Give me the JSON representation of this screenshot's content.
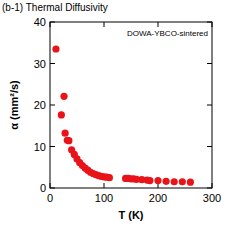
{
  "chart_data": {
    "type": "scatter",
    "title": "(b-1) Thermal Diffusivity",
    "annotation": "DOWA-YBCO-sintered",
    "xlabel": "T (K)",
    "ylabel": "α (mm²/s)",
    "x": [
      11,
      21,
      26,
      28,
      32,
      35,
      40,
      45,
      50,
      55,
      60,
      65,
      70,
      75,
      80,
      85,
      90,
      95,
      100,
      105,
      110,
      140,
      145,
      150,
      155,
      160,
      170,
      180,
      185,
      200,
      215,
      230,
      245,
      260
    ],
    "values": [
      33.5,
      17.6,
      22.1,
      13.2,
      11.5,
      11.4,
      9.2,
      8.1,
      7.0,
      6.1,
      5.4,
      4.8,
      4.3,
      3.8,
      3.5,
      3.2,
      3.0,
      2.8,
      2.7,
      2.6,
      2.5,
      2.3,
      2.3,
      2.2,
      2.2,
      2.1,
      2.0,
      1.9,
      1.8,
      1.8,
      1.6,
      1.5,
      1.5,
      1.4
    ],
    "color": "#e8141a",
    "marker": "circle",
    "xlim": [
      0,
      300
    ],
    "xticks": [
      0,
      100,
      200,
      300
    ],
    "ylim": [
      0,
      40
    ],
    "yticks": [
      0,
      10,
      20,
      30,
      40
    ],
    "grid": false
  }
}
